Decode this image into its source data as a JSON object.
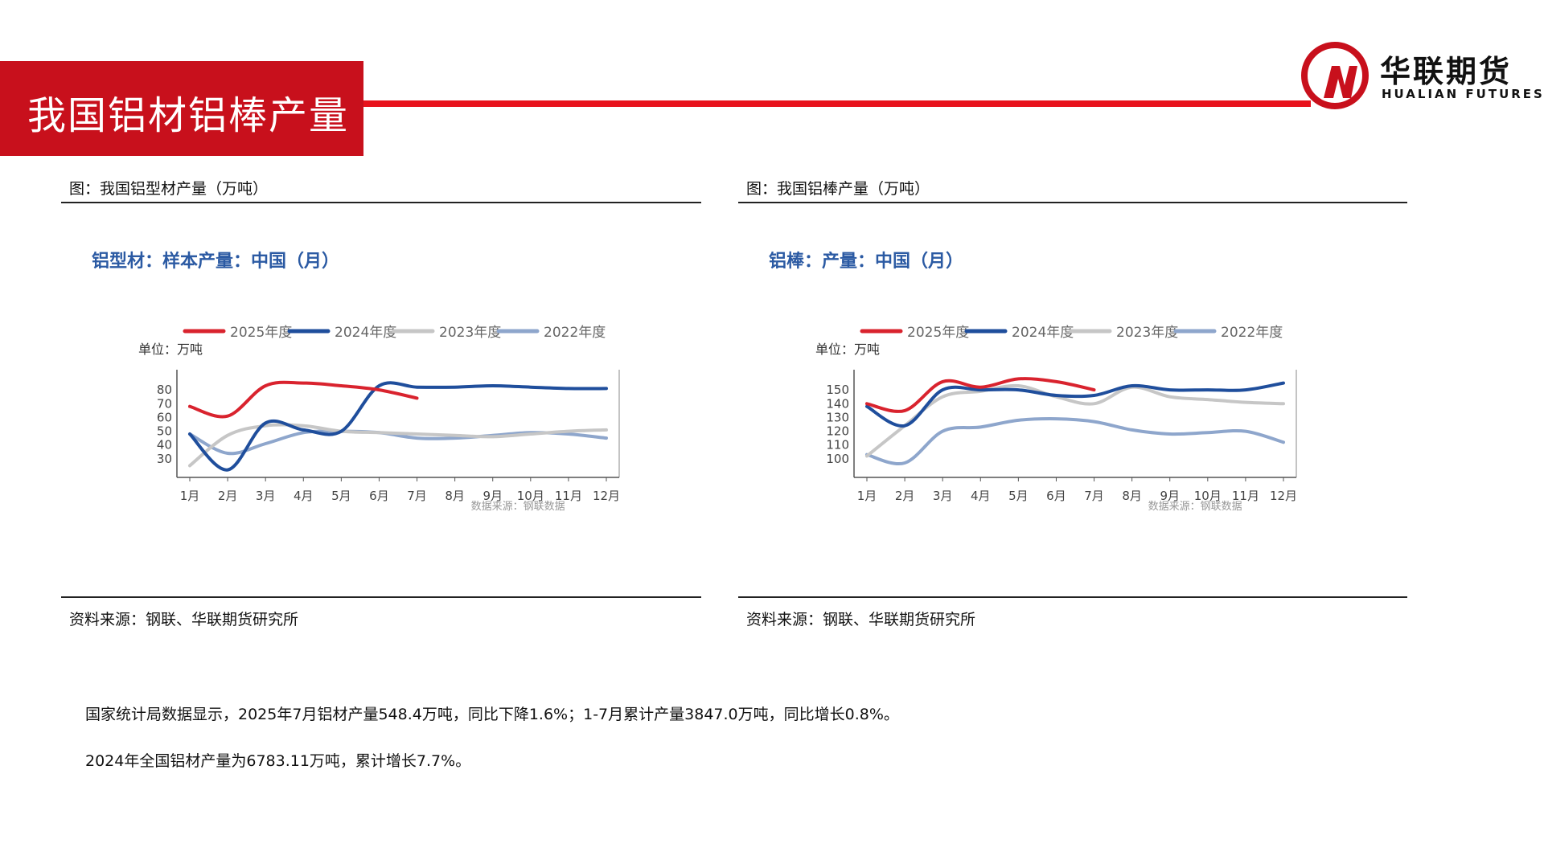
{
  "header": {
    "title": "我国铝材铝棒产量"
  },
  "logo": {
    "cn": "华联期货",
    "en": "HUALIAN FUTURES"
  },
  "colors": {
    "brand_red": "#c8101c",
    "s2025": "#d9232e",
    "s2024": "#1f4e9c",
    "s2023": "#c6c6c6",
    "s2022": "#8ea6cc"
  },
  "left_panel": {
    "caption": "图：我国铝型材产量（万吨）",
    "source": "资料来源：钢联、华联期货研究所"
  },
  "right_panel": {
    "caption": "图：我国铝棒产量（万吨）",
    "source": "资料来源：钢联、华联期货研究所"
  },
  "text": {
    "p1": "国家统计局数据显示，2025年7月铝材产量548.4万吨，同比下降1.6%；1-7月累计产量3847.0万吨，同比增长0.8%。",
    "p2": "2024年全国铝材产量为6783.11万吨，累计增长7.7%。"
  },
  "chart_data": [
    {
      "type": "line",
      "title": "铝型材：样本产量：中国（月）",
      "unit": "单位：万吨",
      "watermark": "数据来源：钢联数据",
      "categories": [
        "1月",
        "2月",
        "3月",
        "4月",
        "5月",
        "6月",
        "7月",
        "8月",
        "9月",
        "10月",
        "11月",
        "12月"
      ],
      "ylim": [
        20,
        90
      ],
      "yticks": [
        30,
        40,
        50,
        60,
        70,
        80
      ],
      "legend": "top",
      "grid": false,
      "series": [
        {
          "name": "2025年度",
          "values": [
            68,
            61,
            83,
            85,
            83,
            80,
            74,
            null,
            null,
            null,
            null,
            null
          ]
        },
        {
          "name": "2024年度",
          "values": [
            48,
            22,
            56,
            51,
            50,
            83,
            82,
            82,
            83,
            82,
            81,
            81
          ]
        },
        {
          "name": "2023年度",
          "values": [
            25,
            47,
            54,
            54,
            50,
            49,
            48,
            47,
            46,
            48,
            50,
            51
          ]
        },
        {
          "name": "2022年度",
          "values": [
            48,
            34,
            41,
            49,
            50,
            49,
            45,
            45,
            47,
            49,
            48,
            45
          ]
        }
      ]
    },
    {
      "type": "line",
      "title": "铝棒：产量：中国（月）",
      "unit": "单位：万吨",
      "watermark": "数据来源：钢联数据",
      "categories": [
        "1月",
        "2月",
        "3月",
        "4月",
        "5月",
        "6月",
        "7月",
        "8月",
        "9月",
        "10月",
        "11月",
        "12月"
      ],
      "ylim": [
        90,
        160
      ],
      "yticks": [
        100,
        110,
        120,
        130,
        140,
        150
      ],
      "legend": "top",
      "grid": false,
      "series": [
        {
          "name": "2025年度",
          "values": [
            140,
            135,
            156,
            152,
            158,
            156,
            150,
            null,
            null,
            null,
            null,
            null
          ]
        },
        {
          "name": "2024年度",
          "values": [
            138,
            124,
            150,
            150,
            150,
            146,
            146,
            153,
            150,
            150,
            150,
            155
          ]
        },
        {
          "name": "2023年度",
          "values": [
            102,
            124,
            145,
            149,
            153,
            145,
            140,
            152,
            145,
            143,
            141,
            140
          ]
        },
        {
          "name": "2022年度",
          "values": [
            103,
            97,
            120,
            123,
            128,
            129,
            127,
            121,
            118,
            119,
            120,
            112
          ]
        }
      ]
    }
  ]
}
